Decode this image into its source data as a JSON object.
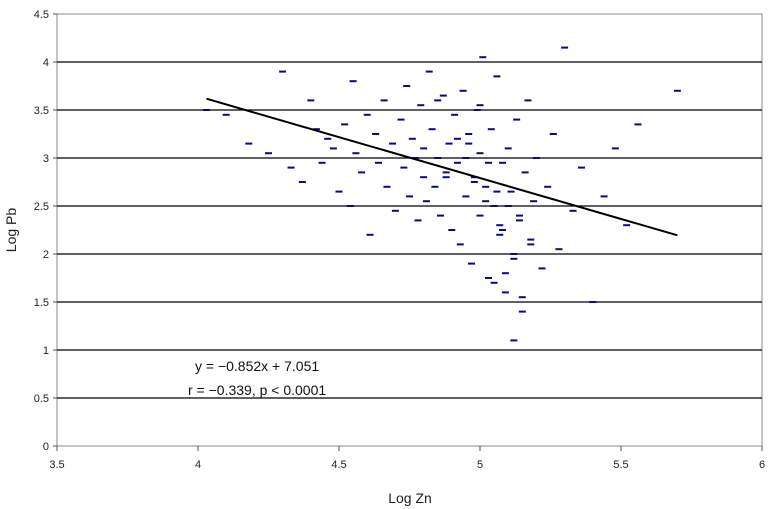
{
  "chart_data": {
    "type": "scatter",
    "title": "",
    "xlabel": "Log Zn",
    "ylabel": "Log Pb",
    "xlim": [
      3.5,
      6
    ],
    "ylim": [
      0,
      4.5
    ],
    "x_ticks": [
      "3.5",
      "4",
      "4.5",
      "5",
      "5.5",
      "6"
    ],
    "y_ticks": [
      "0",
      "0.5",
      "1",
      "1.5",
      "2",
      "2.5",
      "3",
      "3.5",
      "4",
      "4.5"
    ],
    "grid": "horizontal",
    "legend": "none",
    "point_color": "#0a0a80",
    "line_color": "#000000",
    "series": [
      {
        "x": [
          4.03,
          4.1,
          4.18,
          4.25,
          4.3,
          4.33,
          4.37,
          4.4,
          4.42,
          4.44,
          4.46,
          4.48,
          4.5,
          4.52,
          4.54,
          4.55,
          4.56,
          4.58,
          4.6,
          4.61,
          4.63,
          4.64,
          4.66,
          4.67,
          4.69,
          4.7,
          4.72,
          4.73,
          4.74,
          4.75,
          4.76,
          4.77,
          4.78,
          4.79,
          4.8,
          4.8,
          4.81,
          4.82,
          4.83,
          4.84,
          4.85,
          4.86,
          4.87,
          4.88,
          4.89,
          4.9,
          4.91,
          4.92,
          4.93,
          4.94,
          4.95,
          4.96,
          4.97,
          4.98,
          4.99,
          5.0,
          5.0,
          5.01,
          5.02,
          5.03,
          5.04,
          5.05,
          5.06,
          5.07,
          5.08,
          5.09,
          5.1,
          5.11,
          5.12,
          5.13,
          5.14,
          5.15,
          5.16,
          5.17,
          5.18,
          5.19,
          5.2,
          5.22,
          5.24,
          5.26,
          5.28,
          5.3,
          5.33,
          5.36,
          5.4,
          5.44,
          5.48,
          5.52,
          5.56,
          5.7,
          4.88,
          4.95,
          5.02,
          5.07,
          5.12,
          5.05,
          4.98,
          5.1,
          5.15,
          5.08,
          5.0,
          4.92,
          4.85,
          5.18,
          5.03,
          5.12,
          5.06,
          4.96,
          5.09,
          5.14
        ],
        "y": [
          3.5,
          3.45,
          3.15,
          3.05,
          3.9,
          2.9,
          2.75,
          3.6,
          3.3,
          2.95,
          3.2,
          3.1,
          2.65,
          3.35,
          2.5,
          3.8,
          3.05,
          2.85,
          3.45,
          2.2,
          3.25,
          2.95,
          3.6,
          2.7,
          3.15,
          2.45,
          3.4,
          2.9,
          3.75,
          2.6,
          3.2,
          3.0,
          2.35,
          3.55,
          2.8,
          3.1,
          2.55,
          3.9,
          3.3,
          2.7,
          3.0,
          2.4,
          3.65,
          2.85,
          3.15,
          2.25,
          3.45,
          2.95,
          2.1,
          3.7,
          2.6,
          3.25,
          1.9,
          2.8,
          3.5,
          2.4,
          3.05,
          4.05,
          2.7,
          1.75,
          3.3,
          2.5,
          3.85,
          2.2,
          2.95,
          1.6,
          3.1,
          2.65,
          1.95,
          3.4,
          2.35,
          1.55,
          2.85,
          3.6,
          2.15,
          2.55,
          3.0,
          1.85,
          2.7,
          3.25,
          2.05,
          4.15,
          2.45,
          2.9,
          1.5,
          2.6,
          3.1,
          2.3,
          3.35,
          3.7,
          2.8,
          3.0,
          2.55,
          2.3,
          2.0,
          1.7,
          2.75,
          2.5,
          1.4,
          2.25,
          3.55,
          3.2,
          3.6,
          2.1,
          2.95,
          1.1,
          2.65,
          3.15,
          1.8,
          2.4
        ]
      }
    ],
    "trendline": {
      "equation": "y = −0.852x + 7.051",
      "slope": -0.852,
      "intercept": 7.051,
      "x_range": [
        4.03,
        5.7
      ]
    },
    "annotations": [
      "y = −0.852x + 7.051",
      "r = −0.339, p < 0.0001"
    ]
  }
}
